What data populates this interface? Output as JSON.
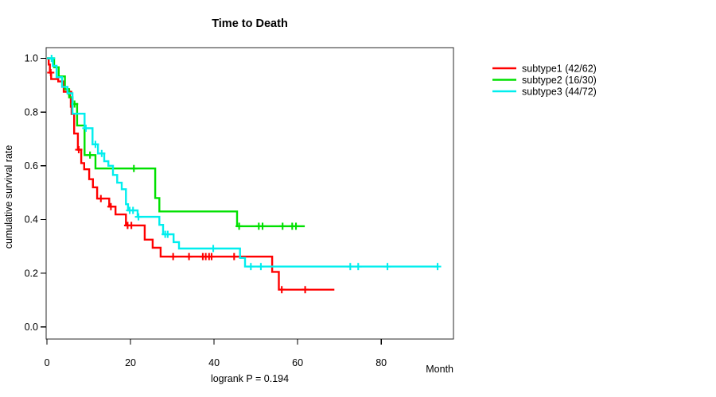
{
  "chart_data": {
    "type": "line",
    "variant": "kaplan-meier-survival-steps",
    "title": "Time to Death",
    "ylabel": "cumulative survival rate",
    "xlabel": "Month",
    "footnote": "logrank P = 0.194",
    "grid": false,
    "legend_position": "top-right-outside",
    "xlim": [
      0,
      97.3
    ],
    "ylim": [
      0,
      1.0
    ],
    "x_ticks": [
      {
        "v": 0,
        "label": "0"
      },
      {
        "v": 20,
        "label": "20"
      },
      {
        "v": 40,
        "label": "40"
      },
      {
        "v": 60,
        "label": "60"
      },
      {
        "v": 80,
        "label": "80"
      }
    ],
    "y_ticks": [
      {
        "v": 0.0,
        "label": "0.0"
      },
      {
        "v": 0.2,
        "label": "0.2"
      },
      {
        "v": 0.4,
        "label": "0.4"
      },
      {
        "v": 0.6,
        "label": "0.6"
      },
      {
        "v": 0.8,
        "label": "0.8"
      },
      {
        "v": 1.0,
        "label": "1.0"
      }
    ],
    "series": [
      {
        "name": "subtype1",
        "legend_label": "subtype1 (42/62)",
        "events_over_n": "42/62",
        "color": "#ff0000",
        "steps": [
          [
            0,
            1.0
          ],
          [
            0.4,
            0.977
          ],
          [
            0.7,
            0.947
          ],
          [
            1.0,
            0.923
          ],
          [
            2.7,
            0.914
          ],
          [
            4.0,
            0.876
          ],
          [
            5.5,
            0.855
          ],
          [
            5.7,
            0.82
          ],
          [
            5.9,
            0.793
          ],
          [
            6.5,
            0.72
          ],
          [
            7.4,
            0.66
          ],
          [
            8.2,
            0.61
          ],
          [
            8.9,
            0.587
          ],
          [
            10.1,
            0.55
          ],
          [
            11.0,
            0.52
          ],
          [
            12.0,
            0.478
          ],
          [
            14.9,
            0.448
          ],
          [
            16.4,
            0.419
          ],
          [
            18.9,
            0.378
          ],
          [
            23.4,
            0.325
          ],
          [
            25.3,
            0.295
          ],
          [
            27.2,
            0.262
          ],
          [
            53.9,
            0.205
          ],
          [
            55.5,
            0.139
          ]
        ],
        "censor_times": [
          0.9,
          5.2,
          7.6,
          12.9,
          15.3,
          19.3,
          20.2,
          30.2,
          34.0,
          37.3,
          38.0,
          38.8,
          39.4,
          44.8,
          56.2,
          61.8
        ],
        "end_time": 68.8
      },
      {
        "name": "subtype2",
        "legend_label": "subtype2 (16/30)",
        "events_over_n": "16/30",
        "color": "#00e000",
        "steps": [
          [
            0,
            1.0
          ],
          [
            1.7,
            0.967
          ],
          [
            2.8,
            0.933
          ],
          [
            4.3,
            0.885
          ],
          [
            5.3,
            0.855
          ],
          [
            6.1,
            0.83
          ],
          [
            7.2,
            0.75
          ],
          [
            9.0,
            0.64
          ],
          [
            11.6,
            0.59
          ],
          [
            25.9,
            0.48
          ],
          [
            26.9,
            0.43
          ],
          [
            45.5,
            0.375
          ]
        ],
        "censor_times": [
          6.6,
          10.3,
          20.8,
          46.0,
          50.7,
          51.6,
          56.4,
          58.7,
          59.6
        ],
        "end_time": 61.7
      },
      {
        "name": "subtype3",
        "legend_label": "subtype3 (44/72)",
        "events_over_n": "44/72",
        "color": "#00eeee",
        "steps": [
          [
            0,
            1.0
          ],
          [
            1.4,
            0.972
          ],
          [
            2.3,
            0.93
          ],
          [
            3.6,
            0.894
          ],
          [
            4.9,
            0.87
          ],
          [
            6.1,
            0.794
          ],
          [
            9.0,
            0.74
          ],
          [
            10.9,
            0.68
          ],
          [
            12.2,
            0.646
          ],
          [
            13.7,
            0.617
          ],
          [
            14.7,
            0.6
          ],
          [
            15.8,
            0.566
          ],
          [
            16.8,
            0.537
          ],
          [
            17.9,
            0.513
          ],
          [
            18.9,
            0.457
          ],
          [
            19.4,
            0.434
          ],
          [
            21.7,
            0.41
          ],
          [
            26.9,
            0.38
          ],
          [
            27.8,
            0.345
          ],
          [
            30.3,
            0.316
          ],
          [
            31.6,
            0.292
          ],
          [
            46.2,
            0.257
          ],
          [
            47.4,
            0.225
          ]
        ],
        "censor_times": [
          1.1,
          9.3,
          11.6,
          13.1,
          19.8,
          20.6,
          21.9,
          28.3,
          28.9,
          39.8,
          48.8,
          51.2,
          72.6,
          74.5,
          81.5,
          93.5
        ],
        "end_time": 93.5
      }
    ]
  }
}
